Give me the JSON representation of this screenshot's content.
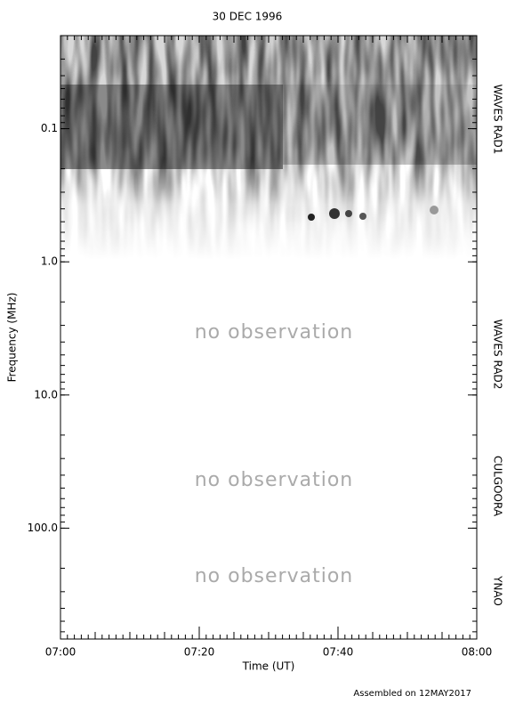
{
  "chart_data": {
    "type": "spectrogram",
    "title": "30 DEC 1996",
    "x_label": "Time (UT)",
    "y_label": "Frequency (MHz)",
    "xlim": [
      "07:00",
      "08:00"
    ],
    "xticks": [
      "07:00",
      "07:20",
      "07:40",
      "08:00"
    ],
    "ylim": [
      0.02,
      680
    ],
    "log_y": true,
    "y_inverted": true,
    "yticks": [
      0.1,
      {
        "value": 1,
        "label": "1.0"
      },
      {
        "value": 10,
        "label": "10.0"
      },
      {
        "value": 100,
        "label": "100.0"
      }
    ],
    "instruments": [
      "WAVES RAD1",
      "WAVES RAD2",
      "CULGOORA",
      "YNAO"
    ],
    "annotations": [
      "no observation",
      "no observation",
      "no observation"
    ],
    "footer": "Assembled on 12MAY2017"
  }
}
